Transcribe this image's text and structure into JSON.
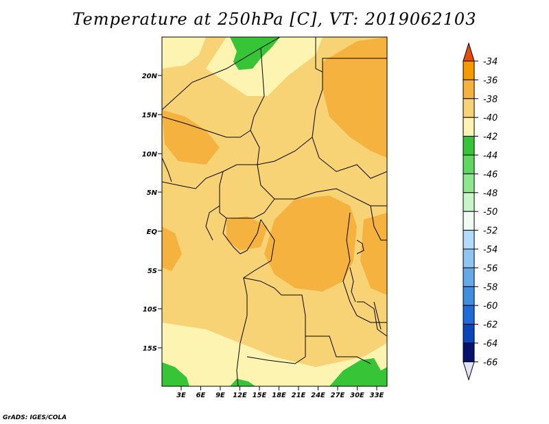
{
  "title": "Temperature at 250hPa [C], VT: 2019062103",
  "credit": "GrADS: IGES/COLA",
  "map": {
    "lat_labels": [
      "20N",
      "15N",
      "10N",
      "5N",
      "EQ",
      "5S",
      "10S",
      "15S"
    ],
    "lon_labels": [
      "3E",
      "6E",
      "9E",
      "12E",
      "15E",
      "18E",
      "21E",
      "24E",
      "27E",
      "30E",
      "33E"
    ],
    "field": "temperature_250hPa",
    "units": "C"
  },
  "colorbar": {
    "labels": [
      "-34",
      "-36",
      "-38",
      "-40",
      "-42",
      "-44",
      "-46",
      "-48",
      "-50",
      "-52",
      "-54",
      "-56",
      "-58",
      "-60",
      "-62",
      "-64",
      "-66"
    ],
    "top_arrow_color": "#e84a10",
    "bottom_arrow_color": "#e2e2f8",
    "colors": [
      "#f56a00",
      "#f59a00",
      "#f6b23e",
      "#f8d375",
      "#fdf4b2",
      "#37c437",
      "#5ed85e",
      "#8ee68e",
      "#c8f5c8",
      "#eefcf4",
      "#b2dcfa",
      "#8ec5f2",
      "#64aaea",
      "#3f8ee0",
      "#1e6cd6",
      "#0a46b8",
      "#06126e"
    ]
  },
  "legend_colors": {
    "c36": "#f6b23e",
    "c38": "#f8d375",
    "c40": "#fdf4b2",
    "c44": "#37c437"
  }
}
